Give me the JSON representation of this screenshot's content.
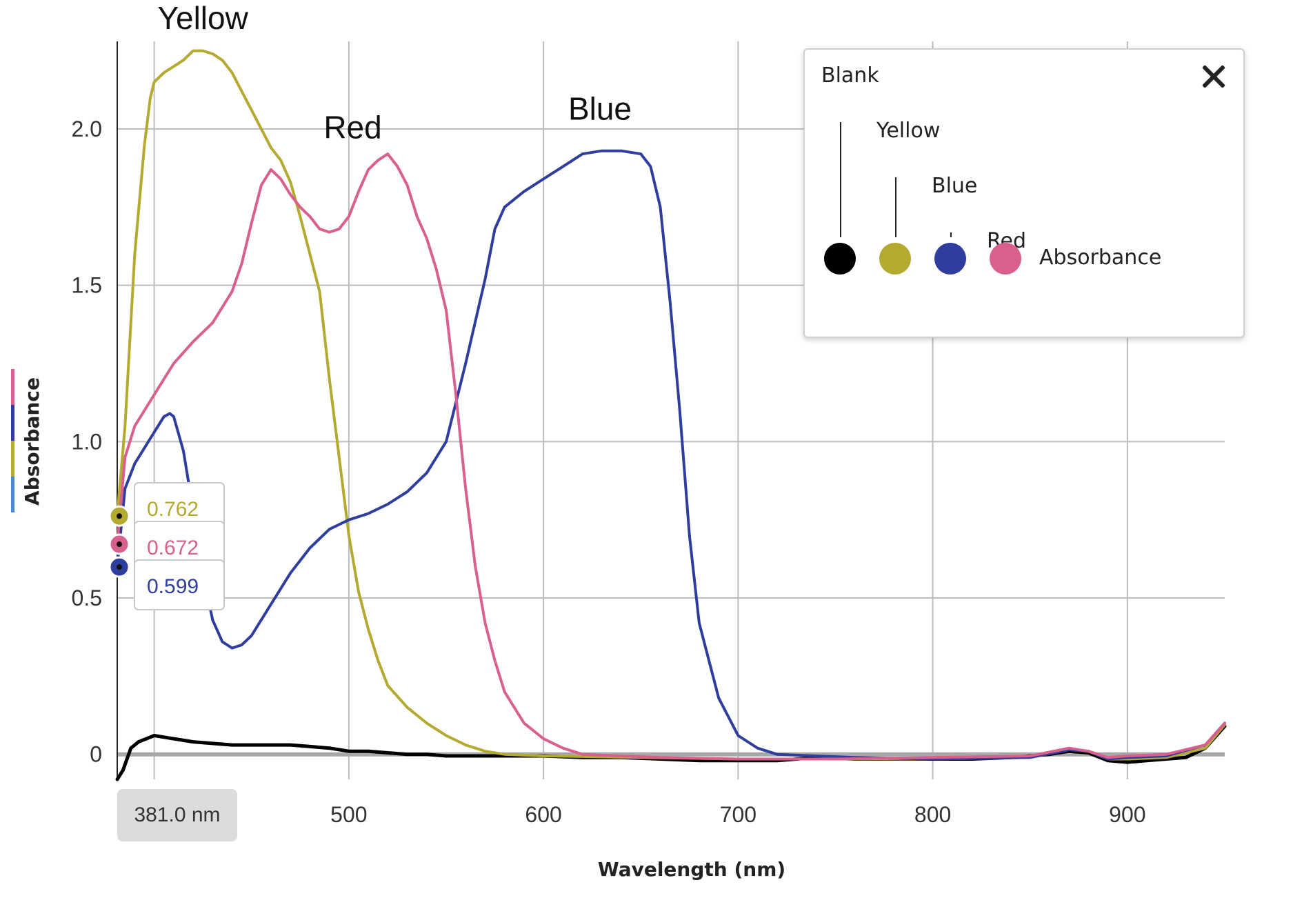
{
  "chart_data": {
    "type": "line",
    "xlabel": "Wavelength (nm)",
    "ylabel": "Absorbance",
    "xlim": [
      381,
      950
    ],
    "ylim": [
      -0.08,
      2.28
    ],
    "x_ticks": [
      400,
      500,
      600,
      700,
      800,
      900
    ],
    "x_tick_labels": [
      "",
      "500",
      "600",
      "700",
      "800",
      "900"
    ],
    "y_ticks": [
      0,
      0.5,
      1.0,
      1.5,
      2.0
    ],
    "y_tick_labels": [
      "0",
      "0.5",
      "1.0",
      "1.5",
      "2.0"
    ],
    "grid": true,
    "legend_placement": "top-right",
    "series": [
      {
        "name": "Blank",
        "color": "#000000",
        "x": [
          381,
          384,
          388,
          392,
          396,
          400,
          405,
          410,
          420,
          430,
          440,
          450,
          460,
          470,
          480,
          490,
          500,
          510,
          520,
          530,
          540,
          550,
          560,
          580,
          600,
          620,
          640,
          660,
          680,
          700,
          720,
          740,
          760,
          780,
          800,
          820,
          840,
          860,
          870,
          880,
          890,
          900,
          910,
          920,
          930,
          940,
          950
        ],
        "y": [
          -0.08,
          -0.05,
          0.02,
          0.04,
          0.05,
          0.06,
          0.055,
          0.05,
          0.04,
          0.035,
          0.03,
          0.03,
          0.03,
          0.03,
          0.025,
          0.02,
          0.01,
          0.01,
          0.005,
          0.0,
          0.0,
          -0.005,
          -0.005,
          -0.005,
          -0.005,
          -0.01,
          -0.01,
          -0.015,
          -0.02,
          -0.02,
          -0.02,
          -0.01,
          -0.015,
          -0.015,
          -0.015,
          -0.015,
          -0.01,
          0.0,
          0.01,
          0.005,
          -0.02,
          -0.025,
          -0.02,
          -0.015,
          -0.01,
          0.02,
          0.09
        ]
      },
      {
        "name": "Yellow",
        "color": "#b5aa30",
        "x": [
          381,
          385,
          390,
          395,
          398,
          400,
          405,
          410,
          415,
          420,
          425,
          430,
          435,
          440,
          445,
          450,
          455,
          460,
          465,
          470,
          475,
          480,
          485,
          490,
          495,
          500,
          505,
          510,
          515,
          520,
          530,
          540,
          550,
          560,
          570,
          580,
          600,
          650,
          700,
          750,
          800,
          850,
          870,
          880,
          890,
          900,
          920,
          940,
          950
        ],
        "y": [
          0.762,
          1.05,
          1.6,
          1.95,
          2.1,
          2.15,
          2.18,
          2.2,
          2.22,
          2.25,
          2.25,
          2.24,
          2.22,
          2.18,
          2.12,
          2.06,
          2.0,
          1.94,
          1.9,
          1.83,
          1.72,
          1.6,
          1.48,
          1.2,
          0.95,
          0.7,
          0.52,
          0.4,
          0.3,
          0.22,
          0.15,
          0.1,
          0.06,
          0.03,
          0.01,
          0.0,
          -0.005,
          -0.01,
          -0.015,
          -0.015,
          -0.015,
          -0.01,
          0.015,
          0.01,
          -0.015,
          -0.015,
          -0.01,
          0.02,
          0.095
        ]
      },
      {
        "name": "Blue",
        "color": "#2f3d9e",
        "x": [
          381,
          385,
          390,
          395,
          400,
          405,
          408,
          410,
          415,
          420,
          425,
          430,
          435,
          440,
          445,
          450,
          460,
          470,
          480,
          490,
          500,
          510,
          520,
          530,
          540,
          550,
          560,
          570,
          575,
          580,
          590,
          600,
          610,
          620,
          630,
          640,
          650,
          655,
          660,
          665,
          670,
          675,
          680,
          690,
          700,
          710,
          720,
          740,
          760,
          800,
          850,
          870,
          880,
          890,
          900,
          920,
          940,
          950
        ],
        "y": [
          0.599,
          0.85,
          0.93,
          0.98,
          1.03,
          1.08,
          1.09,
          1.08,
          0.97,
          0.78,
          0.58,
          0.43,
          0.36,
          0.34,
          0.35,
          0.38,
          0.48,
          0.58,
          0.66,
          0.72,
          0.75,
          0.77,
          0.8,
          0.84,
          0.9,
          1.0,
          1.25,
          1.52,
          1.68,
          1.75,
          1.8,
          1.84,
          1.88,
          1.92,
          1.93,
          1.93,
          1.92,
          1.88,
          1.75,
          1.45,
          1.1,
          0.7,
          0.42,
          0.18,
          0.06,
          0.02,
          0.0,
          -0.005,
          -0.01,
          -0.015,
          -0.01,
          0.015,
          0.01,
          -0.015,
          -0.01,
          -0.005,
          0.03,
          0.1
        ]
      },
      {
        "name": "Red",
        "color": "#d9608e",
        "x": [
          381,
          385,
          390,
          395,
          400,
          405,
          410,
          420,
          430,
          440,
          445,
          450,
          455,
          460,
          465,
          470,
          475,
          480,
          485,
          490,
          495,
          500,
          505,
          510,
          515,
          520,
          525,
          530,
          535,
          540,
          545,
          550,
          555,
          560,
          565,
          570,
          575,
          580,
          590,
          600,
          610,
          620,
          640,
          660,
          700,
          750,
          800,
          850,
          870,
          880,
          890,
          900,
          920,
          940,
          950
        ],
        "y": [
          0.672,
          0.95,
          1.05,
          1.1,
          1.15,
          1.2,
          1.25,
          1.32,
          1.38,
          1.48,
          1.57,
          1.7,
          1.82,
          1.87,
          1.84,
          1.79,
          1.75,
          1.72,
          1.68,
          1.67,
          1.68,
          1.72,
          1.8,
          1.87,
          1.9,
          1.92,
          1.88,
          1.82,
          1.72,
          1.65,
          1.55,
          1.42,
          1.15,
          0.85,
          0.6,
          0.42,
          0.3,
          0.2,
          0.1,
          0.05,
          0.02,
          0.0,
          -0.005,
          -0.01,
          -0.015,
          -0.015,
          -0.01,
          -0.005,
          0.02,
          0.01,
          -0.01,
          -0.005,
          0.0,
          0.03,
          0.1
        ]
      }
    ],
    "annotations": [
      {
        "text": "Yellow",
        "x": 425,
        "y": 2.32
      },
      {
        "text": "Red",
        "x": 502,
        "y": 1.97
      },
      {
        "text": "Blue",
        "x": 629,
        "y": 2.03
      }
    ],
    "cursor": {
      "label": "381.0 nm",
      "x": 381,
      "readouts": [
        {
          "series": "Yellow",
          "value": "0.762",
          "y": 0.762
        },
        {
          "series": "Red",
          "value": "0.672",
          "y": 0.672
        },
        {
          "series": "Blue",
          "value": "0.599",
          "y": 0.599
        }
      ]
    }
  },
  "legend": {
    "entries": [
      {
        "label": "Blank",
        "color": "#000000"
      },
      {
        "label": "Yellow",
        "color": "#b5aa30"
      },
      {
        "label": "Blue",
        "color": "#2f3d9e"
      },
      {
        "label": "Red",
        "color": "#d9608e"
      }
    ],
    "quantity_label": "Absorbance",
    "close_icon": "close-icon"
  },
  "ylabel_swatches": [
    "#d9608e",
    "#2f3d9e",
    "#b5aa30",
    "#4a8bd6"
  ]
}
